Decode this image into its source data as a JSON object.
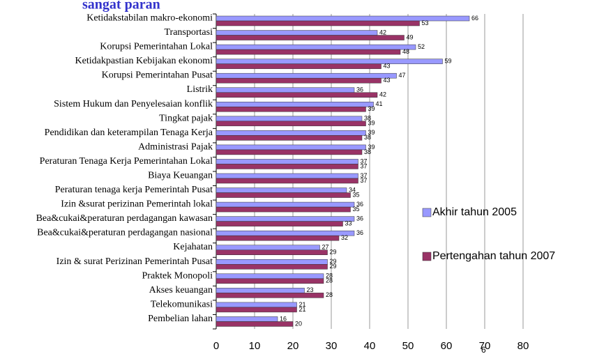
{
  "chart_data": {
    "type": "bar",
    "orientation": "horizontal",
    "title": "sangat paran",
    "page_number": "6",
    "categories": [
      "Ketidakstabilan makro-ekonomi",
      "Transportasi",
      "Korupsi Pemerintahan Lokal",
      "Ketidakpastian Kebijakan ekonomi",
      "Korupsi Pemerintahan Pusat",
      "Listrik",
      "Sistem Hukum dan Penyelesaian konflik",
      "Tingkat pajak",
      "Pendidikan dan keterampilan Tenaga Kerja",
      "Administrasi Pajak",
      "Peraturan Tenaga Kerja Pemerintahan Lokal",
      "Biaya Keuangan",
      "Peraturan tenaga kerja Pemerintah Pusat",
      "Izin &surat perizinan Pemerintah lokal",
      "Bea&cukai&peraturan perdagangan kawasan",
      "Bea&cukai&peraturan perdagangan nasional",
      "Kejahatan",
      "Izin & surat Perizinan Pemerintah Pusat",
      "Praktek Monopoli",
      "Akses keuangan",
      "Telekomunikasi",
      "Pembelian lahan"
    ],
    "series": [
      {
        "name": "Akhir tahun 2005",
        "color": "#9999ff",
        "values": [
          66,
          42,
          52,
          59,
          47,
          36,
          41,
          38,
          39,
          39,
          37,
          37,
          34,
          36,
          36,
          36,
          27,
          29,
          28,
          23,
          21,
          16
        ]
      },
      {
        "name": "Pertengahan tahun 2007",
        "color": "#993366",
        "values": [
          53,
          49,
          48,
          43,
          43,
          42,
          39,
          39,
          38,
          38,
          37,
          37,
          35,
          35,
          33,
          32,
          29,
          29,
          28,
          28,
          21,
          20
        ]
      }
    ],
    "xlim": [
      0,
      80
    ],
    "xticks": [
      0,
      10,
      20,
      30,
      40,
      50,
      60,
      70,
      80
    ],
    "grid": true,
    "legend": "right"
  }
}
